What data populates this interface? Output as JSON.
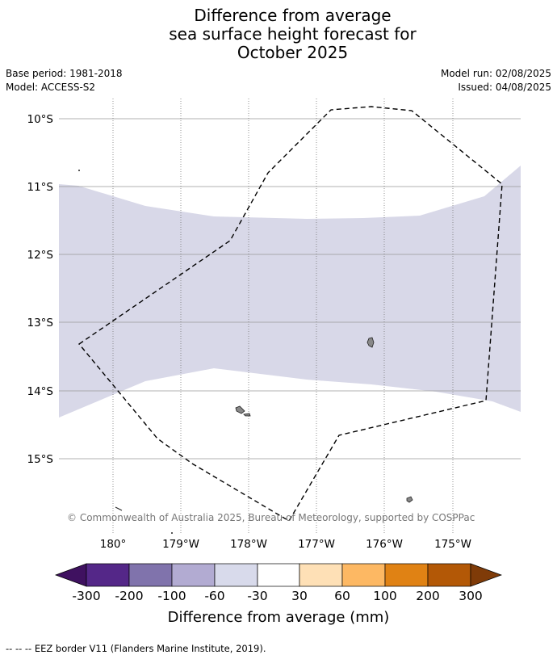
{
  "title": {
    "line1": "Difference from average",
    "line2": "sea surface height forecast for",
    "line3": "October 2025"
  },
  "meta": {
    "base_period": "Base period: 1981-2018",
    "model": "Model: ACCESS-S2",
    "model_run": "Model run: 02/08/2025",
    "issued": "Issued: 04/08/2025"
  },
  "map": {
    "lat_labels": [
      "10°S",
      "11°S",
      "12°S",
      "13°S",
      "14°S",
      "15°S"
    ],
    "lon_labels": [
      "180°",
      "179°W",
      "178°W",
      "177°W",
      "176°W",
      "175°W"
    ],
    "copyright": "© Commonwealth of Australia 2025, Bureau of Meteorology, supported by COSPPac",
    "anomaly_band_category": "-60 to -30",
    "anomaly_band_color": "#d8d8e8",
    "eez_border_style": "dashed black",
    "islands_color": "#888888"
  },
  "colorbar": {
    "ticks": [
      "-300",
      "-200",
      "-100",
      "-60",
      "-30",
      "30",
      "60",
      "100",
      "200",
      "300"
    ],
    "colors": [
      "#3f1160",
      "#542788",
      "#8073ac",
      "#b2abd2",
      "#d8daeb",
      "#ffffff",
      "#fee0b6",
      "#fdb863",
      "#e08214",
      "#b35806",
      "#7f3b08"
    ],
    "label": "Difference from average (mm)"
  },
  "footer": {
    "legend": "--  --  -- EEZ border V11 (Flanders Marine Institute, 2019)."
  }
}
